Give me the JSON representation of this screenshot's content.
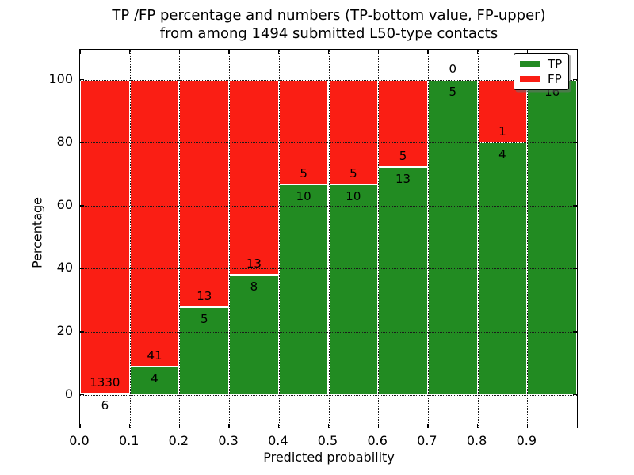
{
  "chart_data": {
    "type": "bar",
    "stacked": true,
    "title_line1": "TP /FP percentage and numbers (TP-bottom value, FP-upper)",
    "title_line2": "from among 1494 submitted L50-type contacts",
    "xlabel": "Predicted probability",
    "ylabel": "Percentage",
    "total_submitted": 1494,
    "bin_width": 0.1,
    "categories": [
      "0.0-0.1",
      "0.1-0.2",
      "0.2-0.3",
      "0.3-0.4",
      "0.4-0.5",
      "0.5-0.6",
      "0.6-0.7",
      "0.7-0.8",
      "0.8-0.9",
      "0.9-1.0"
    ],
    "series": [
      {
        "name": "TP",
        "color": "#228B22",
        "counts": [
          6,
          4,
          5,
          8,
          10,
          10,
          13,
          5,
          4,
          16
        ]
      },
      {
        "name": "FP",
        "color": "#fa1e14",
        "counts": [
          1330,
          41,
          13,
          13,
          5,
          5,
          5,
          0,
          1,
          0
        ]
      }
    ],
    "bar_total_percent": 100,
    "ylim": [
      -10.4,
      109.5
    ],
    "xlim": [
      0.0,
      1.0
    ],
    "yticks": [
      0,
      20,
      40,
      60,
      80,
      100
    ],
    "ytick_labels": [
      "0",
      "20",
      "40",
      "60",
      "80",
      "100"
    ],
    "xticks": [
      0.0,
      0.1,
      0.2,
      0.3,
      0.4,
      0.5,
      0.6,
      0.7,
      0.8,
      0.9
    ],
    "xtick_labels": [
      "0.0",
      "0.1",
      "0.2",
      "0.3",
      "0.4",
      "0.5",
      "0.6",
      "0.7",
      "0.8",
      "0.9"
    ],
    "grid": true,
    "grid_style": "dotted",
    "legend": {
      "position": "upper right",
      "entries": [
        {
          "label": "TP",
          "color": "#228B22"
        },
        {
          "label": "FP",
          "color": "#fa1e14"
        }
      ]
    }
  }
}
